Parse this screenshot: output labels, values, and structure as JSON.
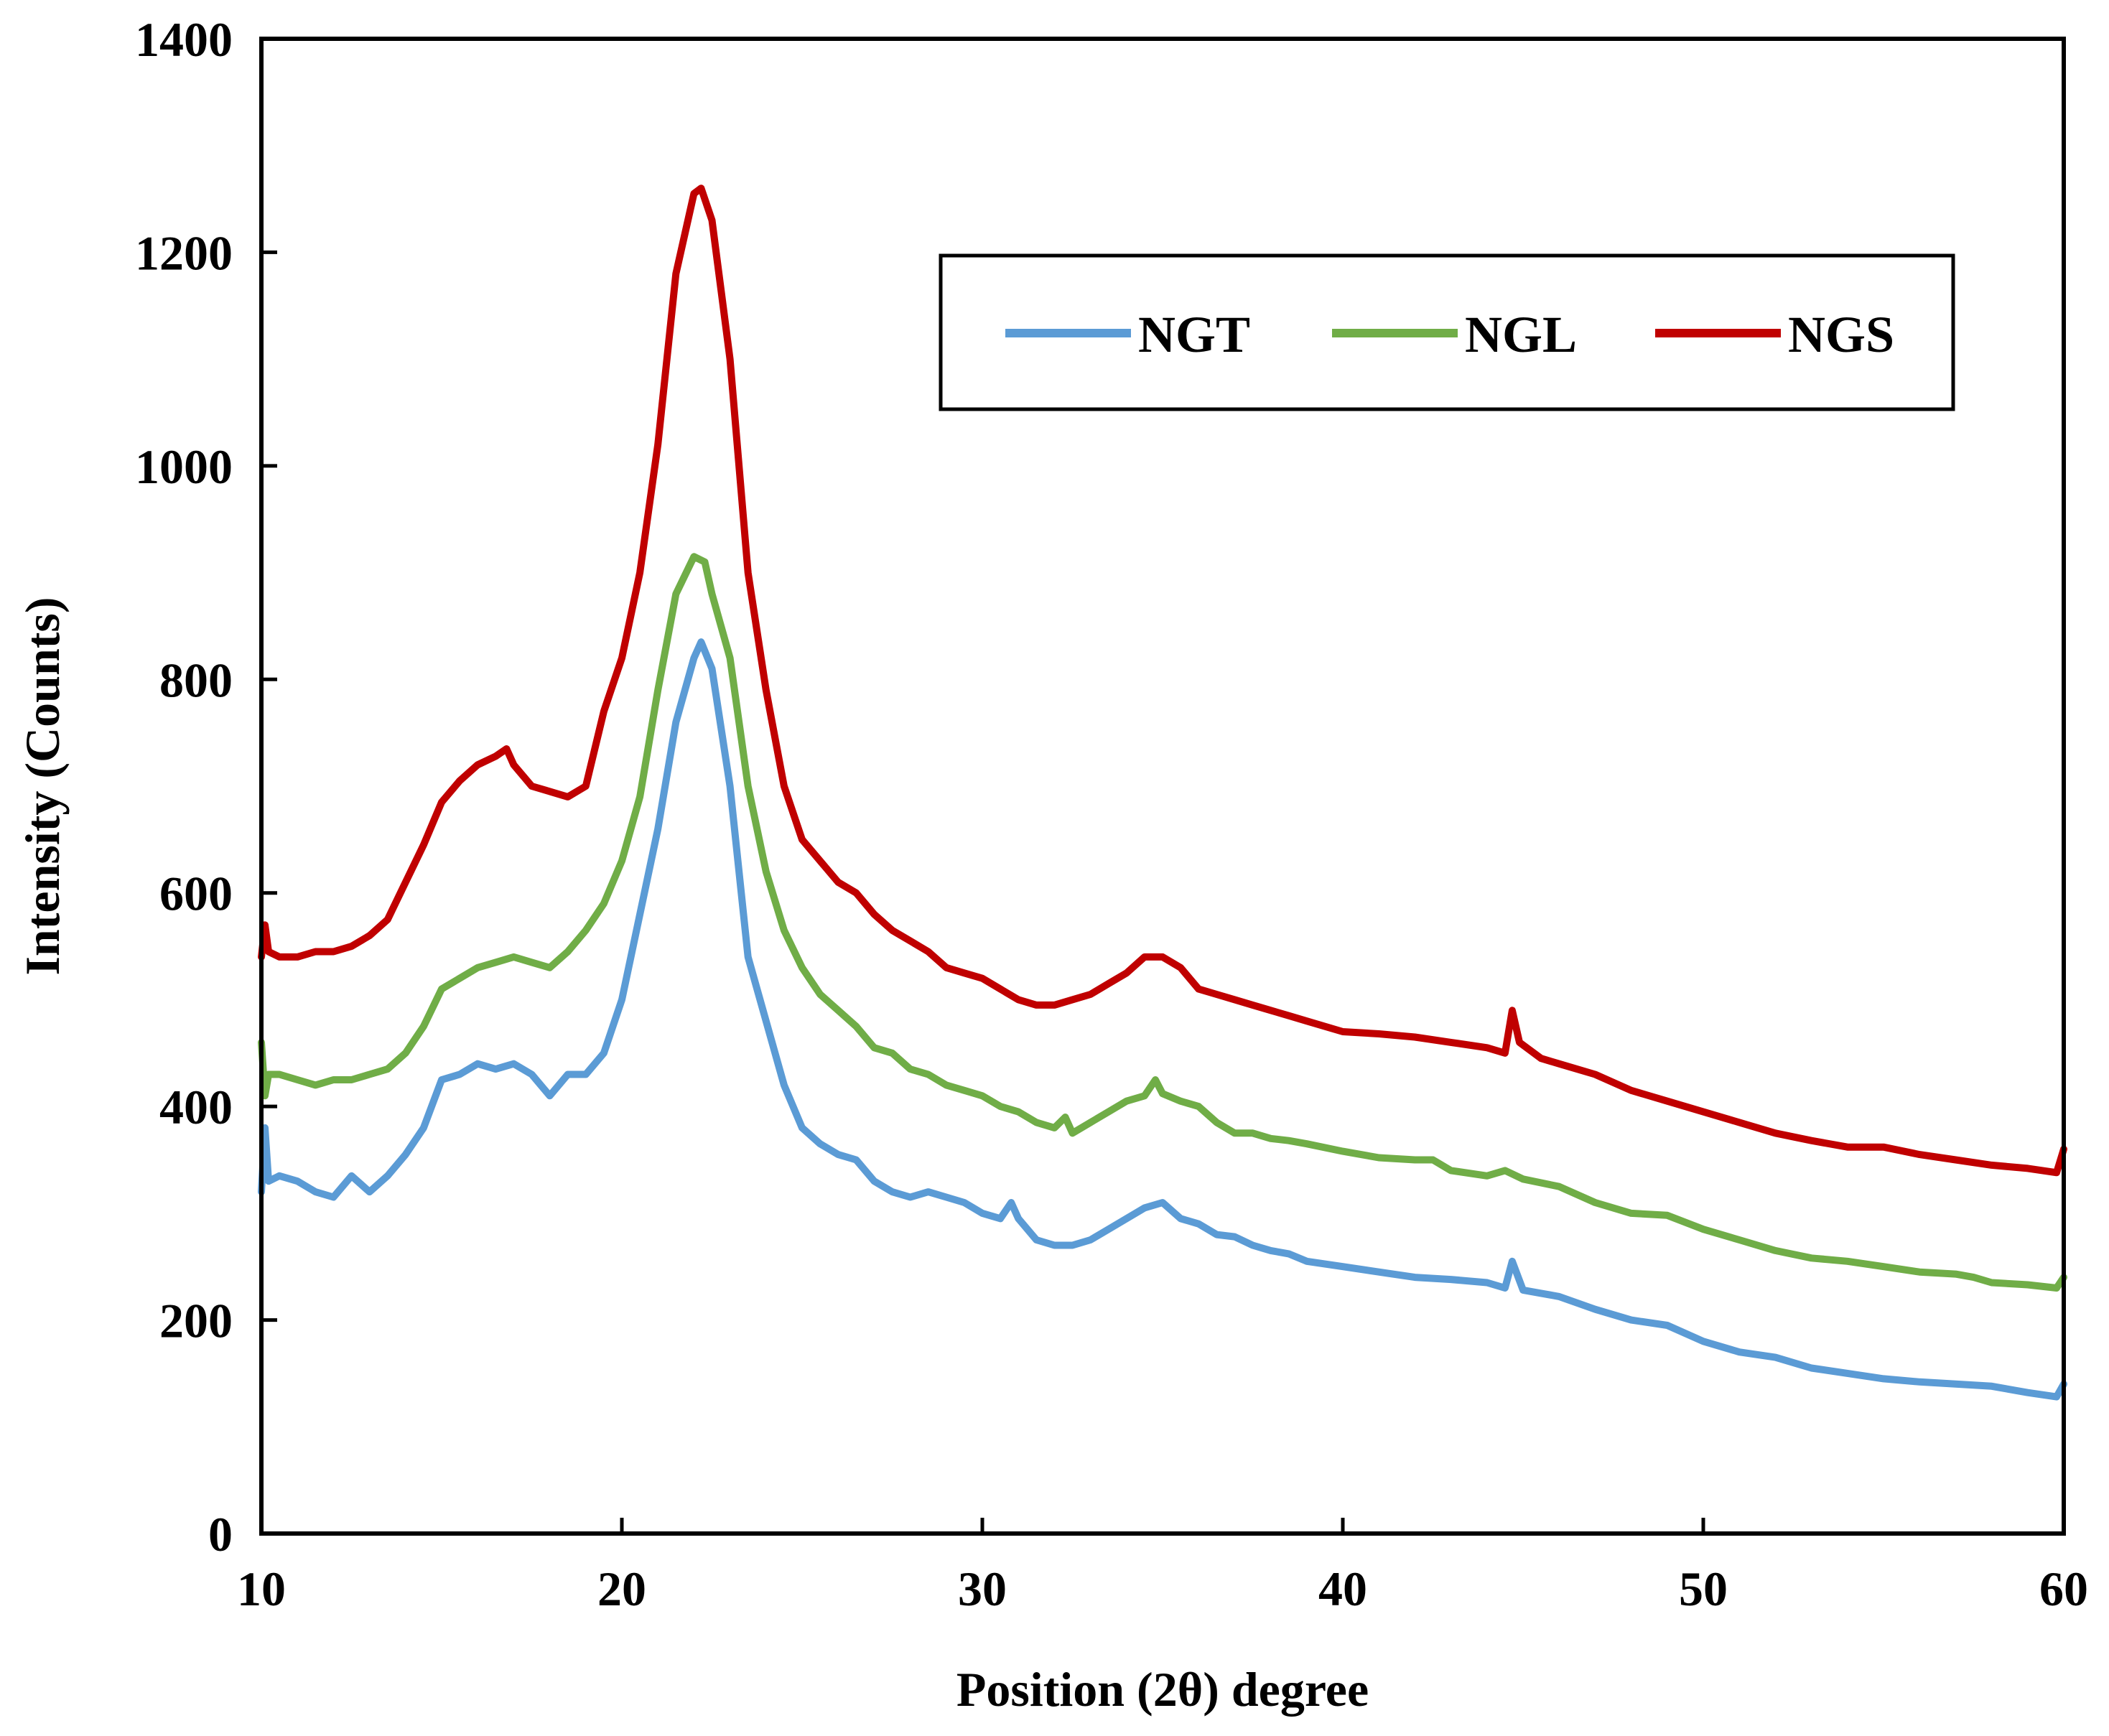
{
  "chart_data": {
    "type": "line",
    "title": "",
    "xlabel": "Position (2θ) degree",
    "ylabel": "Intensity (Counts)",
    "xlim": [
      10,
      60
    ],
    "ylim": [
      0,
      1400
    ],
    "xticks": [
      10,
      20,
      30,
      40,
      50,
      60
    ],
    "yticks": [
      0,
      200,
      400,
      600,
      800,
      1000,
      1200,
      1400
    ],
    "x_tick_labels": [
      "10",
      "20",
      "30",
      "40",
      "50",
      "60"
    ],
    "y_tick_labels": [
      "0",
      "200",
      "400",
      "600",
      "800",
      "1000",
      "1200",
      "1400"
    ],
    "grid": false,
    "legend": {
      "placement": "top-right",
      "entries": [
        "NGT",
        "NGL",
        "NGS"
      ]
    },
    "series": [
      {
        "name": "NGT",
        "color": "#5b9bd5",
        "points": [
          [
            10.0,
            320
          ],
          [
            10.1,
            380
          ],
          [
            10.2,
            330
          ],
          [
            10.5,
            335
          ],
          [
            11.0,
            330
          ],
          [
            11.5,
            320
          ],
          [
            12.0,
            315
          ],
          [
            12.5,
            335
          ],
          [
            13.0,
            320
          ],
          [
            13.5,
            335
          ],
          [
            14.0,
            355
          ],
          [
            14.5,
            380
          ],
          [
            15.0,
            425
          ],
          [
            15.5,
            430
          ],
          [
            16.0,
            440
          ],
          [
            16.5,
            435
          ],
          [
            17.0,
            440
          ],
          [
            17.5,
            430
          ],
          [
            18.0,
            410
          ],
          [
            18.5,
            430
          ],
          [
            19.0,
            430
          ],
          [
            19.5,
            450
          ],
          [
            20.0,
            500
          ],
          [
            20.5,
            580
          ],
          [
            21.0,
            660
          ],
          [
            21.5,
            760
          ],
          [
            22.0,
            820
          ],
          [
            22.2,
            835
          ],
          [
            22.5,
            810
          ],
          [
            23.0,
            700
          ],
          [
            23.5,
            540
          ],
          [
            24.0,
            480
          ],
          [
            24.5,
            420
          ],
          [
            25.0,
            380
          ],
          [
            25.5,
            365
          ],
          [
            26.0,
            355
          ],
          [
            26.5,
            350
          ],
          [
            27.0,
            330
          ],
          [
            27.5,
            320
          ],
          [
            28.0,
            315
          ],
          [
            28.5,
            320
          ],
          [
            29.0,
            315
          ],
          [
            29.5,
            310
          ],
          [
            30.0,
            300
          ],
          [
            30.5,
            295
          ],
          [
            30.8,
            310
          ],
          [
            31.0,
            295
          ],
          [
            31.5,
            275
          ],
          [
            32.0,
            270
          ],
          [
            32.5,
            270
          ],
          [
            33.0,
            275
          ],
          [
            33.5,
            285
          ],
          [
            34.0,
            295
          ],
          [
            34.5,
            305
          ],
          [
            35.0,
            310
          ],
          [
            35.5,
            295
          ],
          [
            36.0,
            290
          ],
          [
            36.5,
            280
          ],
          [
            37.0,
            278
          ],
          [
            37.5,
            270
          ],
          [
            38.0,
            265
          ],
          [
            38.5,
            262
          ],
          [
            39.0,
            255
          ],
          [
            40.0,
            250
          ],
          [
            41.0,
            245
          ],
          [
            42.0,
            240
          ],
          [
            43.0,
            238
          ],
          [
            44.0,
            235
          ],
          [
            44.5,
            230
          ],
          [
            44.7,
            255
          ],
          [
            45.0,
            228
          ],
          [
            45.5,
            225
          ],
          [
            46.0,
            222
          ],
          [
            47.0,
            210
          ],
          [
            48.0,
            200
          ],
          [
            49.0,
            195
          ],
          [
            50.0,
            180
          ],
          [
            51.0,
            170
          ],
          [
            52.0,
            165
          ],
          [
            53.0,
            155
          ],
          [
            54.0,
            150
          ],
          [
            55.0,
            145
          ],
          [
            56.0,
            142
          ],
          [
            57.0,
            140
          ],
          [
            58.0,
            138
          ],
          [
            59.0,
            132
          ],
          [
            59.8,
            128
          ],
          [
            60.0,
            140
          ]
        ]
      },
      {
        "name": "NGL",
        "color": "#70ad47",
        "points": [
          [
            10.0,
            460
          ],
          [
            10.1,
            410
          ],
          [
            10.2,
            430
          ],
          [
            10.5,
            430
          ],
          [
            11.0,
            425
          ],
          [
            11.5,
            420
          ],
          [
            12.0,
            425
          ],
          [
            12.5,
            425
          ],
          [
            13.0,
            430
          ],
          [
            13.5,
            435
          ],
          [
            14.0,
            450
          ],
          [
            14.5,
            475
          ],
          [
            15.0,
            510
          ],
          [
            15.5,
            520
          ],
          [
            16.0,
            530
          ],
          [
            16.5,
            535
          ],
          [
            17.0,
            540
          ],
          [
            17.5,
            535
          ],
          [
            18.0,
            530
          ],
          [
            18.5,
            545
          ],
          [
            19.0,
            565
          ],
          [
            19.5,
            590
          ],
          [
            20.0,
            630
          ],
          [
            20.5,
            690
          ],
          [
            21.0,
            790
          ],
          [
            21.5,
            880
          ],
          [
            22.0,
            915
          ],
          [
            22.3,
            910
          ],
          [
            22.5,
            880
          ],
          [
            23.0,
            820
          ],
          [
            23.5,
            700
          ],
          [
            24.0,
            620
          ],
          [
            24.5,
            565
          ],
          [
            25.0,
            530
          ],
          [
            25.5,
            505
          ],
          [
            26.0,
            490
          ],
          [
            26.5,
            475
          ],
          [
            27.0,
            455
          ],
          [
            27.5,
            450
          ],
          [
            28.0,
            435
          ],
          [
            28.5,
            430
          ],
          [
            29.0,
            420
          ],
          [
            29.5,
            415
          ],
          [
            30.0,
            410
          ],
          [
            30.5,
            400
          ],
          [
            31.0,
            395
          ],
          [
            31.5,
            385
          ],
          [
            32.0,
            380
          ],
          [
            32.3,
            390
          ],
          [
            32.5,
            375
          ],
          [
            33.0,
            385
          ],
          [
            33.5,
            395
          ],
          [
            34.0,
            405
          ],
          [
            34.5,
            410
          ],
          [
            34.8,
            425
          ],
          [
            35.0,
            412
          ],
          [
            35.5,
            405
          ],
          [
            36.0,
            400
          ],
          [
            36.5,
            385
          ],
          [
            37.0,
            375
          ],
          [
            37.5,
            375
          ],
          [
            38.0,
            370
          ],
          [
            38.5,
            368
          ],
          [
            39.0,
            365
          ],
          [
            40.0,
            358
          ],
          [
            41.0,
            352
          ],
          [
            42.0,
            350
          ],
          [
            42.5,
            350
          ],
          [
            43.0,
            340
          ],
          [
            44.0,
            335
          ],
          [
            44.5,
            340
          ],
          [
            45.0,
            332
          ],
          [
            46.0,
            325
          ],
          [
            47.0,
            310
          ],
          [
            48.0,
            300
          ],
          [
            49.0,
            298
          ],
          [
            50.0,
            285
          ],
          [
            51.0,
            275
          ],
          [
            52.0,
            265
          ],
          [
            53.0,
            258
          ],
          [
            54.0,
            255
          ],
          [
            55.0,
            250
          ],
          [
            56.0,
            245
          ],
          [
            57.0,
            243
          ],
          [
            57.5,
            240
          ],
          [
            58.0,
            235
          ],
          [
            59.0,
            233
          ],
          [
            59.8,
            230
          ],
          [
            60.0,
            240
          ]
        ]
      },
      {
        "name": "NGS",
        "color": "#c00000",
        "points": [
          [
            10.0,
            540
          ],
          [
            10.1,
            570
          ],
          [
            10.2,
            545
          ],
          [
            10.5,
            540
          ],
          [
            11.0,
            540
          ],
          [
            11.5,
            545
          ],
          [
            12.0,
            545
          ],
          [
            12.5,
            550
          ],
          [
            13.0,
            560
          ],
          [
            13.5,
            575
          ],
          [
            14.0,
            610
          ],
          [
            14.5,
            645
          ],
          [
            15.0,
            685
          ],
          [
            15.5,
            705
          ],
          [
            16.0,
            720
          ],
          [
            16.5,
            728
          ],
          [
            16.8,
            735
          ],
          [
            17.0,
            720
          ],
          [
            17.5,
            700
          ],
          [
            18.0,
            695
          ],
          [
            18.5,
            690
          ],
          [
            19.0,
            700
          ],
          [
            19.5,
            770
          ],
          [
            20.0,
            820
          ],
          [
            20.5,
            900
          ],
          [
            21.0,
            1020
          ],
          [
            21.5,
            1180
          ],
          [
            22.0,
            1255
          ],
          [
            22.2,
            1260
          ],
          [
            22.5,
            1230
          ],
          [
            23.0,
            1100
          ],
          [
            23.5,
            900
          ],
          [
            24.0,
            790
          ],
          [
            24.5,
            700
          ],
          [
            25.0,
            650
          ],
          [
            25.5,
            630
          ],
          [
            26.0,
            610
          ],
          [
            26.5,
            600
          ],
          [
            27.0,
            580
          ],
          [
            27.5,
            565
          ],
          [
            28.0,
            555
          ],
          [
            28.5,
            545
          ],
          [
            29.0,
            530
          ],
          [
            29.5,
            525
          ],
          [
            30.0,
            520
          ],
          [
            30.5,
            510
          ],
          [
            31.0,
            500
          ],
          [
            31.5,
            495
          ],
          [
            32.0,
            495
          ],
          [
            32.5,
            500
          ],
          [
            33.0,
            505
          ],
          [
            33.5,
            515
          ],
          [
            34.0,
            525
          ],
          [
            34.5,
            540
          ],
          [
            35.0,
            540
          ],
          [
            35.5,
            530
          ],
          [
            36.0,
            510
          ],
          [
            36.5,
            505
          ],
          [
            37.0,
            500
          ],
          [
            37.5,
            495
          ],
          [
            38.0,
            490
          ],
          [
            38.5,
            485
          ],
          [
            39.0,
            480
          ],
          [
            40.0,
            470
          ],
          [
            41.0,
            468
          ],
          [
            42.0,
            465
          ],
          [
            43.0,
            460
          ],
          [
            44.0,
            455
          ],
          [
            44.5,
            450
          ],
          [
            44.7,
            490
          ],
          [
            44.9,
            460
          ],
          [
            45.5,
            445
          ],
          [
            46.0,
            440
          ],
          [
            47.0,
            430
          ],
          [
            48.0,
            415
          ],
          [
            49.0,
            405
          ],
          [
            50.0,
            395
          ],
          [
            51.0,
            385
          ],
          [
            52.0,
            375
          ],
          [
            53.0,
            368
          ],
          [
            54.0,
            362
          ],
          [
            55.0,
            362
          ],
          [
            56.0,
            355
          ],
          [
            57.0,
            350
          ],
          [
            58.0,
            345
          ],
          [
            59.0,
            342
          ],
          [
            59.8,
            338
          ],
          [
            60.0,
            360
          ]
        ]
      }
    ]
  }
}
